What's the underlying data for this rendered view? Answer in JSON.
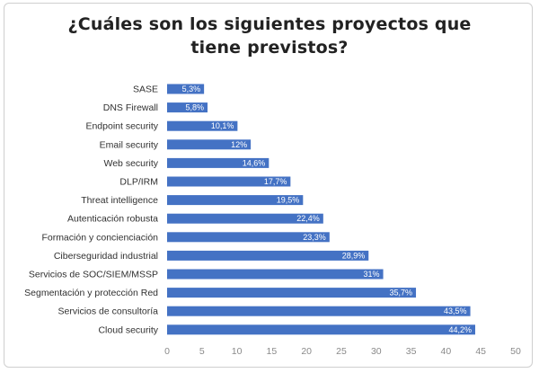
{
  "chart_data": {
    "type": "bar",
    "orientation": "horizontal",
    "title_lines": [
      "¿Cuáles son los siguientes proyectos que",
      "tiene previstos?"
    ],
    "categories": [
      "SASE",
      "DNS Firewall",
      "Endpoint security",
      "Email security",
      "Web security",
      "DLP/IRM",
      "Threat intelligence",
      "Autenticación robusta",
      "Formación y concienciación",
      "Ciberseguridad industrial",
      "Servicios de SOC/SIEM/MSSP",
      "Segmentación y protección Red",
      "Servicios de consultoría",
      "Cloud security"
    ],
    "values": [
      5.3,
      5.8,
      10.1,
      12,
      14.6,
      17.7,
      19.5,
      22.4,
      23.3,
      28.9,
      31,
      35.7,
      43.5,
      44.2
    ],
    "value_labels": [
      "5,3%",
      "5,8%",
      "10,1%",
      "12%",
      "14,6%",
      "17,7%",
      "19,5%",
      "22,4%",
      "23,3%",
      "28,9%",
      "31%",
      "35,7%",
      "43,5%",
      "44,2%"
    ],
    "xlim": [
      0,
      50
    ],
    "xticks": [
      0,
      5,
      10,
      15,
      20,
      25,
      30,
      35,
      40,
      45,
      50
    ],
    "grid": false,
    "bar_color": "#4472C4"
  }
}
